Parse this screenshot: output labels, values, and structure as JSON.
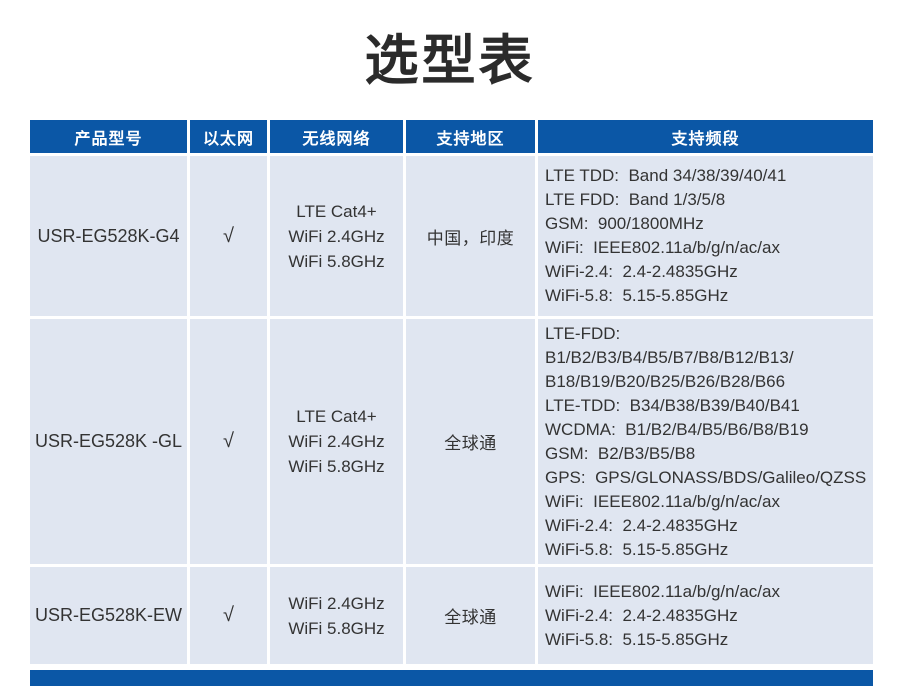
{
  "title": "选型表",
  "colors": {
    "header_bg": "#0b57a6",
    "row_bg": "#e0e6f1",
    "footer_bg": "#0b57a6",
    "title_color": "#2b2b2b",
    "cell_text": "#333333"
  },
  "table": {
    "headers": [
      "产品型号",
      "以太网",
      "无线网络",
      "支持地区",
      "支持频段"
    ],
    "rows": [
      {
        "model": "USR-EG528K-G4",
        "ethernet": "√",
        "wireless": [
          "LTE Cat4+",
          "WiFi 2.4GHz",
          "WiFi 5.8GHz"
        ],
        "region": "中国，印度",
        "bands": [
          "LTE TDD:  Band 34/38/39/40/41",
          "LTE FDD:  Band 1/3/5/8",
          "GSM:  900/1800MHz",
          "WiFi:  IEEE802.11a/b/g/n/ac/ax",
          "WiFi-2.4:  2.4-2.4835GHz",
          "WiFi-5.8:  5.15-5.85GHz"
        ]
      },
      {
        "model": "USR-EG528K -GL",
        "ethernet": "√",
        "wireless": [
          "LTE Cat4+",
          "WiFi 2.4GHz",
          "WiFi 5.8GHz"
        ],
        "region": "全球通",
        "bands": [
          "LTE-FDD:  B1/B2/B3/B4/B5/B7/B8/B12/B13/\nB18/B19/B20/B25/B26/B28/B66",
          "LTE-TDD:  B34/B38/B39/B40/B41",
          "WCDMA:  B1/B2/B4/B5/B6/B8/B19",
          "GSM:  B2/B3/B5/B8",
          "GPS:  GPS/GLONASS/BDS/Galileo/QZSS",
          "WiFi:  IEEE802.11a/b/g/n/ac/ax",
          "WiFi-2.4:  2.4-2.4835GHz",
          "WiFi-5.8:  5.15-5.85GHz"
        ]
      },
      {
        "model": "USR-EG528K-EW",
        "ethernet": "√",
        "wireless": [
          "WiFi 2.4GHz",
          "WiFi 5.8GHz"
        ],
        "region": "全球通",
        "bands": [
          "WiFi:  IEEE802.11a/b/g/n/ac/ax",
          "WiFi-2.4:  2.4-2.4835GHz",
          "WiFi-5.8:  5.15-5.85GHz"
        ]
      }
    ]
  }
}
